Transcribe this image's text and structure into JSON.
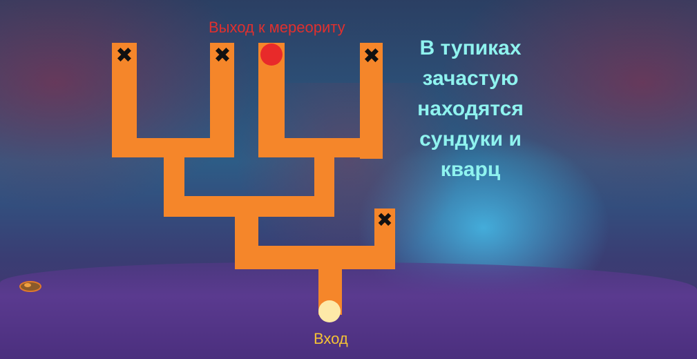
{
  "colors": {
    "path": "#f5862a",
    "exit_marker": "#e82a2a",
    "entry_marker": "#fde9a8",
    "dead_end_mark": "#111111",
    "exit_label": "#e0302e",
    "entry_label": "#f5c235",
    "note_text": "#8ff3ef"
  },
  "map": {
    "exit_label": "Выход к мереориту",
    "entry_label": "Вход",
    "dead_end_icon": "cross-icon",
    "exit_icon": "red-dot-icon",
    "entry_icon": "light-dot-icon"
  },
  "note": {
    "lines": [
      "В тупиках",
      "зачастую",
      "находятся",
      "сундуки и",
      "кварц"
    ]
  }
}
